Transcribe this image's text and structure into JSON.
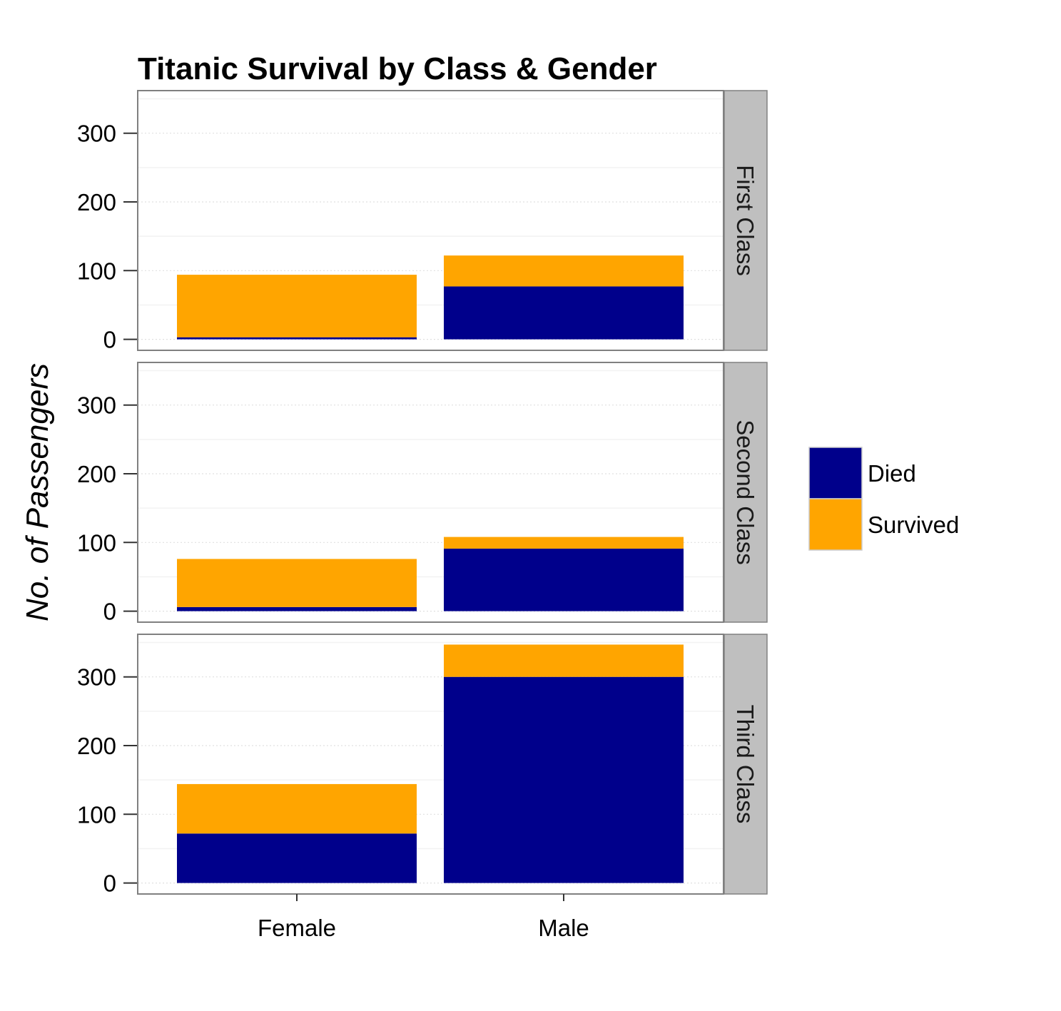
{
  "chart_data": {
    "type": "bar",
    "stacked": true,
    "title": "Titanic Survival by Class & Gender",
    "xlabel": "",
    "ylabel": "No. of Passengers",
    "categories": [
      "Female",
      "Male"
    ],
    "yticks": [
      "0",
      "100",
      "200",
      "300"
    ],
    "ylim": [
      -16,
      362
    ],
    "grid": true,
    "legend": {
      "position": "right",
      "entries": [
        {
          "name": "Died",
          "color": "#00008B"
        },
        {
          "name": "Survived",
          "color": "#FFA500"
        }
      ]
    },
    "panels": [
      {
        "facet": "First Class",
        "series": [
          {
            "name": "Died",
            "values": [
              3,
              77
            ]
          },
          {
            "name": "Survived",
            "values": [
              91,
              45
            ]
          }
        ]
      },
      {
        "facet": "Second Class",
        "series": [
          {
            "name": "Died",
            "values": [
              6,
              91
            ]
          },
          {
            "name": "Survived",
            "values": [
              70,
              17
            ]
          }
        ]
      },
      {
        "facet": "Third Class",
        "series": [
          {
            "name": "Died",
            "values": [
              72,
              300
            ]
          },
          {
            "name": "Survived",
            "values": [
              72,
              47
            ]
          }
        ]
      }
    ]
  }
}
